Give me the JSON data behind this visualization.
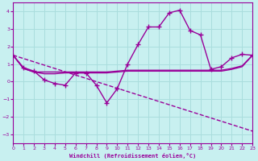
{
  "xlabel": "Windchill (Refroidissement éolien,°C)",
  "xlim": [
    0,
    23
  ],
  "ylim": [
    -3.5,
    4.5
  ],
  "yticks": [
    -3,
    -2,
    -1,
    0,
    1,
    2,
    3,
    4
  ],
  "xticks": [
    0,
    1,
    2,
    3,
    4,
    5,
    6,
    7,
    8,
    9,
    10,
    11,
    12,
    13,
    14,
    15,
    16,
    17,
    18,
    19,
    20,
    21,
    22,
    23
  ],
  "background_color": "#c8f0f0",
  "grid_color": "#aadddd",
  "line_color": "#990099",
  "line_width": 1.0,
  "marker": "+",
  "marker_size": 4,
  "series1_x": [
    0,
    1,
    2,
    3,
    4,
    5,
    6,
    7,
    8,
    9,
    10,
    11,
    12,
    13,
    14,
    15,
    16,
    17,
    18,
    19,
    20,
    21,
    22,
    23
  ],
  "series1_y": [
    1.5,
    0.8,
    0.6,
    0.1,
    -0.1,
    -0.2,
    0.5,
    0.5,
    -0.2,
    -1.2,
    -0.4,
    1.0,
    2.1,
    3.1,
    3.1,
    3.9,
    4.05,
    2.9,
    2.65,
    0.7,
    0.85,
    1.35,
    1.55,
    1.5
  ],
  "series2_x": [
    0,
    1,
    2,
    3,
    4,
    5,
    6,
    7,
    8,
    9,
    10,
    11,
    12,
    13,
    14,
    15,
    16,
    17,
    18,
    19,
    20,
    21,
    22,
    23
  ],
  "series2_y": [
    1.5,
    0.75,
    0.55,
    0.55,
    0.55,
    0.55,
    0.55,
    0.55,
    0.55,
    0.55,
    0.6,
    0.65,
    0.65,
    0.65,
    0.65,
    0.65,
    0.65,
    0.65,
    0.65,
    0.65,
    0.65,
    0.75,
    0.9,
    1.5
  ],
  "series3_x": [
    0,
    1,
    2,
    3,
    4,
    5,
    6,
    7,
    8,
    9,
    10,
    11,
    12,
    13,
    14,
    15,
    16,
    17,
    18,
    19,
    20,
    21,
    22,
    23
  ],
  "series3_y": [
    1.5,
    0.75,
    0.55,
    0.45,
    0.45,
    0.5,
    0.5,
    0.5,
    0.5,
    0.5,
    0.55,
    0.6,
    0.6,
    0.6,
    0.6,
    0.6,
    0.6,
    0.6,
    0.6,
    0.6,
    0.6,
    0.7,
    0.85,
    1.5
  ],
  "series4_x": [
    0,
    23
  ],
  "series4_y": [
    1.5,
    -2.8
  ]
}
